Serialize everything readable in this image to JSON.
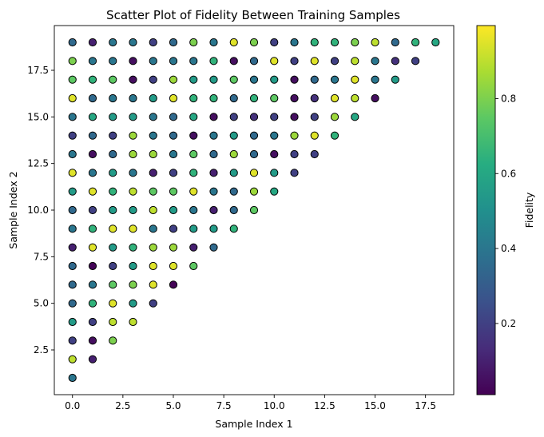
{
  "chart_data": {
    "type": "scatter",
    "title": "Scatter Plot of Fidelity Between Training Samples",
    "xlabel": "Sample Index 1",
    "ylabel": "Sample Index 2",
    "xlim": [
      -0.9,
      18.9
    ],
    "ylim": [
      0.1,
      19.9
    ],
    "xticks": [
      0,
      2.5,
      5,
      7.5,
      10,
      12.5,
      15,
      17.5
    ],
    "xtick_labels": [
      "0.0",
      "2.5",
      "5.0",
      "7.5",
      "10.0",
      "12.5",
      "15.0",
      "17.5"
    ],
    "yticks": [
      2.5,
      5,
      7.5,
      10,
      12.5,
      15,
      17.5
    ],
    "ytick_labels": [
      "2.5",
      "5.0",
      "7.5",
      "10.0",
      "12.5",
      "15.0",
      "17.5"
    ],
    "colorbar": {
      "label": "Fidelity",
      "colormap": "viridis",
      "range": [
        0.01,
        0.995
      ],
      "ticks": [
        0.2,
        0.4,
        0.6,
        0.8
      ],
      "tick_labels": [
        "0.2",
        "0.4",
        "0.6",
        "0.8"
      ]
    },
    "grid": false,
    "marker_edge_color": "#000000",
    "fidelity_by_row": [
      [
        0.4
      ],
      [
        0.9,
        0.1
      ],
      [
        0.2,
        0.05,
        0.8
      ],
      [
        0.55,
        0.2,
        0.9,
        0.9
      ],
      [
        0.35,
        0.65,
        0.95,
        0.55,
        0.2
      ],
      [
        0.35,
        0.4,
        0.75,
        0.8,
        0.95,
        0.02
      ],
      [
        0.35,
        0.02,
        0.2,
        0.55,
        0.95,
        0.95,
        0.75
      ],
      [
        0.1,
        0.95,
        0.55,
        0.65,
        0.85,
        0.85,
        0.1,
        0.35
      ],
      [
        0.4,
        0.65,
        0.95,
        0.95,
        0.4,
        0.2,
        0.55,
        0.55,
        0.65
      ],
      [
        0.35,
        0.2,
        0.55,
        0.55,
        0.9,
        0.55,
        0.4,
        0.1,
        0.35,
        0.75
      ],
      [
        0.55,
        0.95,
        0.65,
        0.9,
        0.75,
        0.75,
        0.95,
        0.4,
        0.35,
        0.85,
        0.6
      ],
      [
        0.95,
        0.4,
        0.55,
        0.4,
        0.1,
        0.2,
        0.65,
        0.1,
        0.55,
        0.95,
        0.55,
        0.2
      ],
      [
        0.4,
        0.05,
        0.35,
        0.85,
        0.85,
        0.4,
        0.75,
        0.35,
        0.85,
        0.35,
        0.05,
        0.2,
        0.2
      ],
      [
        0.2,
        0.35,
        0.2,
        0.85,
        0.4,
        0.35,
        0.05,
        0.4,
        0.55,
        0.35,
        0.4,
        0.85,
        0.95,
        0.65
      ],
      [
        0.4,
        0.6,
        0.55,
        0.55,
        0.4,
        0.35,
        0.6,
        0.05,
        0.2,
        0.15,
        0.2,
        0.05,
        0.2,
        0.85,
        0.6
      ],
      [
        0.95,
        0.35,
        0.4,
        0.4,
        0.55,
        0.95,
        0.65,
        0.65,
        0.35,
        0.65,
        0.75,
        0.05,
        0.15,
        0.95,
        0.9,
        0.05
      ],
      [
        0.75,
        0.65,
        0.75,
        0.05,
        0.2,
        0.85,
        0.55,
        0.55,
        0.75,
        0.4,
        0.55,
        0.05,
        0.35,
        0.4,
        0.95,
        0.4,
        0.55
      ],
      [
        0.8,
        0.4,
        0.4,
        0.05,
        0.4,
        0.4,
        0.4,
        0.65,
        0.05,
        0.35,
        0.95,
        0.2,
        0.95,
        0.2,
        0.9,
        0.4,
        0.15,
        0.2
      ],
      [
        0.35,
        0.1,
        0.4,
        0.4,
        0.2,
        0.35,
        0.8,
        0.4,
        0.95,
        0.8,
        0.2,
        0.4,
        0.65,
        0.65,
        0.8,
        0.9,
        0.35,
        0.65,
        0.6
      ]
    ]
  }
}
